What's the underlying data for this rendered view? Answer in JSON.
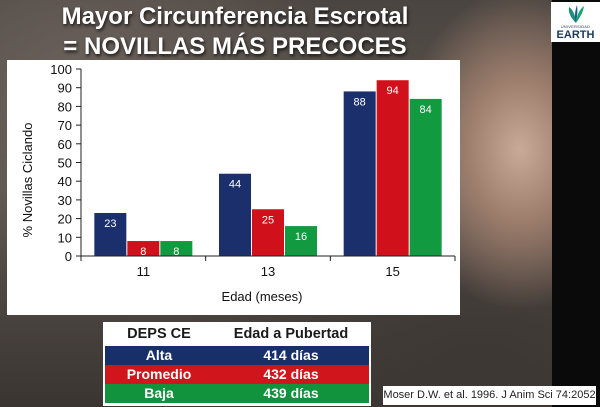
{
  "header": {
    "title_line1": "Mayor Circunferencia Escrotal",
    "title_line2": "= NOVILLAS MÁS PRECOCES"
  },
  "logo": {
    "small_text": "UNIVERSIDAD",
    "name": "EARTH"
  },
  "colors": {
    "alta": "#1a2f6b",
    "promedio": "#d0101a",
    "baja": "#119a3f"
  },
  "chart_data": {
    "type": "bar",
    "categories": [
      "11",
      "13",
      "15"
    ],
    "series": [
      {
        "values": [
          23,
          44,
          88
        ]
      },
      {
        "values": [
          8,
          25,
          94
        ]
      },
      {
        "values": [
          8,
          16,
          84
        ]
      }
    ],
    "xlabel": "Edad (meses)",
    "ylabel": "% Novillas Ciclando",
    "ylim": [
      0,
      100
    ],
    "yticks": [
      0,
      10,
      20,
      30,
      40,
      50,
      60,
      70,
      80,
      90,
      100
    ],
    "grid": false,
    "legend": "none",
    "data_labels": true
  },
  "table": {
    "headers": [
      "DEPS CE",
      "Edad a Pubertad"
    ],
    "rows": [
      [
        "Alta",
        "414 días"
      ],
      [
        "Promedio",
        "432 días"
      ],
      [
        "Baja",
        "439 días"
      ]
    ]
  },
  "citation": "Moser D.W. et al. 1996. J Anim Sci 74:2052"
}
